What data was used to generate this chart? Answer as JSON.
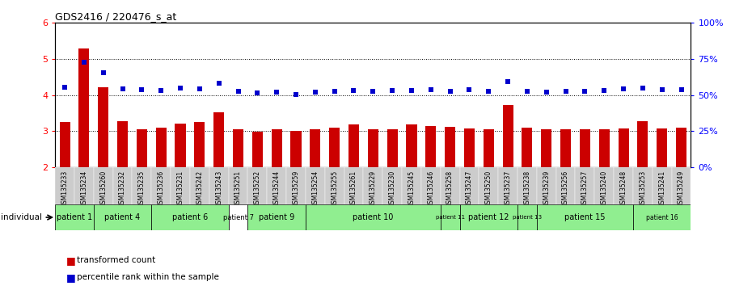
{
  "title": "GDS2416 / 220476_s_at",
  "samples": [
    "GSM135233",
    "GSM135234",
    "GSM135260",
    "GSM135232",
    "GSM135235",
    "GSM135236",
    "GSM135231",
    "GSM135242",
    "GSM135243",
    "GSM135251",
    "GSM135252",
    "GSM135244",
    "GSM135259",
    "GSM135254",
    "GSM135255",
    "GSM135261",
    "GSM135229",
    "GSM135230",
    "GSM135245",
    "GSM135246",
    "GSM135258",
    "GSM135247",
    "GSM135250",
    "GSM135237",
    "GSM135238",
    "GSM135239",
    "GSM135256",
    "GSM135257",
    "GSM135240",
    "GSM135248",
    "GSM135253",
    "GSM135241",
    "GSM135249"
  ],
  "bar_values": [
    3.25,
    5.28,
    4.22,
    3.28,
    3.05,
    3.1,
    3.2,
    3.25,
    3.52,
    3.05,
    2.98,
    3.05,
    3.0,
    3.05,
    3.1,
    3.18,
    3.05,
    3.05,
    3.18,
    3.15,
    3.12,
    3.08,
    3.05,
    3.72,
    3.1,
    3.05,
    3.05,
    3.05,
    3.05,
    3.08,
    3.28,
    3.08,
    3.1
  ],
  "dot_values": [
    4.22,
    4.92,
    4.62,
    4.18,
    4.15,
    4.12,
    4.2,
    4.18,
    4.32,
    4.1,
    4.05,
    4.08,
    4.02,
    4.08,
    4.1,
    4.12,
    4.1,
    4.12,
    4.12,
    4.14,
    4.1,
    4.15,
    4.1,
    4.38,
    4.1,
    4.08,
    4.1,
    4.1,
    4.12,
    4.18,
    4.2,
    4.15,
    4.15
  ],
  "ylim_left": [
    2,
    6
  ],
  "ylim_right": [
    0,
    100
  ],
  "yticks_left": [
    2,
    3,
    4,
    5,
    6
  ],
  "yticks_right": [
    0,
    25,
    50,
    75,
    100
  ],
  "ytick_labels_right": [
    "0%",
    "25%",
    "50%",
    "75%",
    "100%"
  ],
  "bar_color": "#CC0000",
  "dot_color": "#0000CC",
  "bar_bottom": 2.0,
  "patients": [
    {
      "label": "patient 1",
      "start": 0,
      "end": 2,
      "color": "#90EE90",
      "fontsize": 7
    },
    {
      "label": "patient 4",
      "start": 2,
      "end": 5,
      "color": "#90EE90",
      "fontsize": 7
    },
    {
      "label": "patient 6",
      "start": 5,
      "end": 9,
      "color": "#90EE90",
      "fontsize": 7
    },
    {
      "label": "patient 7",
      "start": 9,
      "end": 10,
      "color": "#ffffff",
      "fontsize": 6
    },
    {
      "label": "patient 9",
      "start": 10,
      "end": 13,
      "color": "#90EE90",
      "fontsize": 7
    },
    {
      "label": "patient 10",
      "start": 13,
      "end": 20,
      "color": "#90EE90",
      "fontsize": 7
    },
    {
      "label": "patient 11",
      "start": 20,
      "end": 21,
      "color": "#90EE90",
      "fontsize": 5
    },
    {
      "label": "patient 12",
      "start": 21,
      "end": 24,
      "color": "#90EE90",
      "fontsize": 7
    },
    {
      "label": "patient 13",
      "start": 24,
      "end": 25,
      "color": "#90EE90",
      "fontsize": 5
    },
    {
      "label": "patient 15",
      "start": 25,
      "end": 30,
      "color": "#90EE90",
      "fontsize": 7
    },
    {
      "label": "patient 16",
      "start": 30,
      "end": 33,
      "color": "#90EE90",
      "fontsize": 5.5
    }
  ],
  "grid_lines": [
    3,
    4,
    5
  ],
  "background_color": "#ffffff",
  "tick_bg": "#cccccc"
}
